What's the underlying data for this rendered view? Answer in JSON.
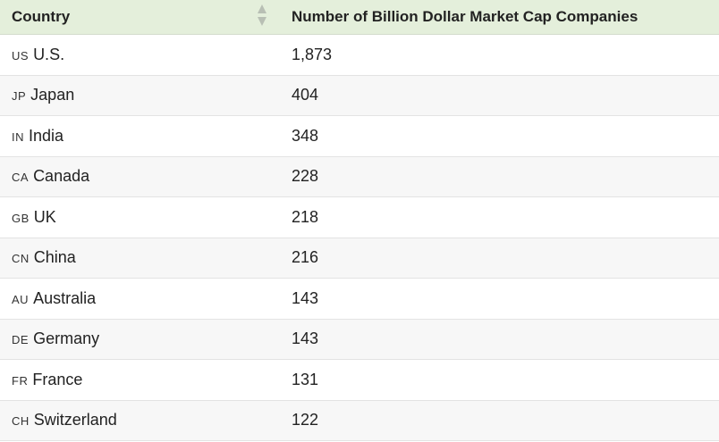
{
  "table": {
    "headers": {
      "country": "Country",
      "count": "Number of Billion Dollar Market Cap Companies"
    },
    "rows": [
      {
        "code": "US",
        "country": "U.S.",
        "count": "1,873"
      },
      {
        "code": "JP",
        "country": "Japan",
        "count": "404"
      },
      {
        "code": "IN",
        "country": "India",
        "count": "348"
      },
      {
        "code": "CA",
        "country": "Canada",
        "count": "228"
      },
      {
        "code": "GB",
        "country": "UK",
        "count": "218"
      },
      {
        "code": "CN",
        "country": "China",
        "count": "216"
      },
      {
        "code": "AU",
        "country": "Australia",
        "count": "143"
      },
      {
        "code": "DE",
        "country": "Germany",
        "count": "143"
      },
      {
        "code": "FR",
        "country": "France",
        "count": "131"
      },
      {
        "code": "CH",
        "country": "Switzerland",
        "count": "122"
      }
    ]
  },
  "colors": {
    "header_bg": "#e4efdb",
    "alt_row_bg": "#f7f7f7",
    "sort_icon": "#b8bfb4"
  }
}
